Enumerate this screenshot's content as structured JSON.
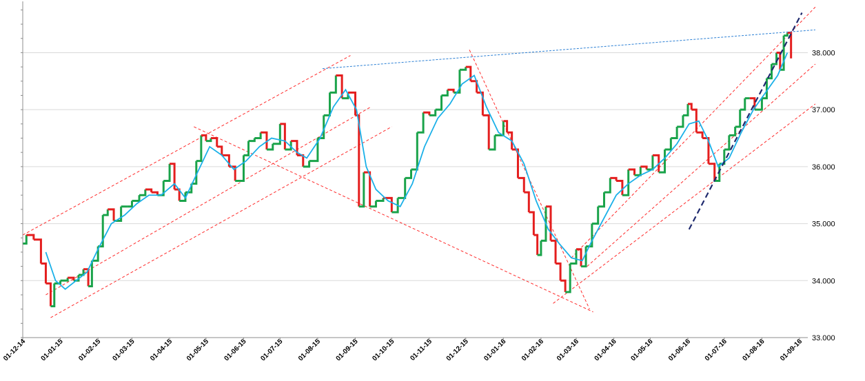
{
  "chart_data": {
    "type": "line",
    "title": "",
    "xlabel": "",
    "ylabel": "",
    "ylim": [
      33.0,
      38.9
    ],
    "grid": true,
    "legend": "none",
    "y_ticks": [
      33.0,
      34.0,
      35.0,
      36.0,
      37.0,
      38.0
    ],
    "y_tick_labels": [
      "33.000",
      "34.000",
      "35.000",
      "36.000",
      "37.000",
      "38.000"
    ],
    "x_tick_labels": [
      "01-12-14",
      "01-01-15",
      "01-02-15",
      "01-03-15",
      "01-04-15",
      "01-05-15",
      "01-06-15",
      "01-07-15",
      "01-08-15",
      "01-09-15",
      "01-10-15",
      "01-11-15",
      "01-12-15",
      "01-01-16",
      "01-02-16",
      "01-03-16",
      "01-04-16",
      "01-05-16",
      "01-06-16",
      "01-07-16",
      "01-08-16",
      "01-09-16"
    ],
    "colors": {
      "up": "#1aa34a",
      "down": "#e41e1e",
      "moving_average": "#1ab0e8",
      "channel": "#ff2a2a",
      "resistance": "#2a7fd4",
      "trend": "#1f2a6e",
      "grid": "#d9d9d9"
    },
    "price_path": [
      [
        "2014-12-01",
        34.65
      ],
      [
        "2014-12-04",
        34.8
      ],
      [
        "2014-12-10",
        34.72
      ],
      [
        "2014-12-16",
        34.3
      ],
      [
        "2014-12-20",
        33.95
      ],
      [
        "2014-12-24",
        33.55
      ],
      [
        "2014-12-27",
        33.95
      ],
      [
        "2015-01-01",
        34.0
      ],
      [
        "2015-01-07",
        34.05
      ],
      [
        "2015-01-12",
        34.0
      ],
      [
        "2015-01-16",
        34.1
      ],
      [
        "2015-01-20",
        34.2
      ],
      [
        "2015-01-24",
        33.9
      ],
      [
        "2015-01-27",
        34.35
      ],
      [
        "2015-02-01",
        34.6
      ],
      [
        "2015-02-05",
        35.15
      ],
      [
        "2015-02-09",
        35.25
      ],
      [
        "2015-02-14",
        35.05
      ],
      [
        "2015-02-20",
        35.3
      ],
      [
        "2015-02-25",
        35.3
      ],
      [
        "2015-03-01",
        35.4
      ],
      [
        "2015-03-07",
        35.5
      ],
      [
        "2015-03-12",
        35.6
      ],
      [
        "2015-03-17",
        35.55
      ],
      [
        "2015-03-22",
        35.5
      ],
      [
        "2015-03-27",
        35.75
      ],
      [
        "2015-04-01",
        36.05
      ],
      [
        "2015-04-05",
        35.6
      ],
      [
        "2015-04-09",
        35.4
      ],
      [
        "2015-04-14",
        35.55
      ],
      [
        "2015-04-19",
        35.7
      ],
      [
        "2015-04-23",
        36.1
      ],
      [
        "2015-04-27",
        36.55
      ],
      [
        "2015-05-01",
        36.45
      ],
      [
        "2015-05-05",
        36.5
      ],
      [
        "2015-05-10",
        36.35
      ],
      [
        "2015-05-14",
        36.2
      ],
      [
        "2015-05-20",
        36.0
      ],
      [
        "2015-05-25",
        35.75
      ],
      [
        "2015-06-01",
        36.2
      ],
      [
        "2015-06-05",
        36.45
      ],
      [
        "2015-06-10",
        36.5
      ],
      [
        "2015-06-15",
        36.6
      ],
      [
        "2015-06-20",
        36.3
      ],
      [
        "2015-06-25",
        36.4
      ],
      [
        "2015-07-01",
        36.75
      ],
      [
        "2015-07-05",
        36.3
      ],
      [
        "2015-07-10",
        36.45
      ],
      [
        "2015-07-15",
        36.2
      ],
      [
        "2015-07-20",
        36.0
      ],
      [
        "2015-07-25",
        36.1
      ],
      [
        "2015-08-01",
        36.5
      ],
      [
        "2015-08-06",
        36.9
      ],
      [
        "2015-08-11",
        37.3
      ],
      [
        "2015-08-16",
        37.6
      ],
      [
        "2015-08-21",
        37.2
      ],
      [
        "2015-08-26",
        37.3
      ],
      [
        "2015-09-01",
        36.9
      ],
      [
        "2015-09-04",
        35.3
      ],
      [
        "2015-09-08",
        35.9
      ],
      [
        "2015-09-13",
        35.3
      ],
      [
        "2015-09-18",
        35.4
      ],
      [
        "2015-09-24",
        35.45
      ],
      [
        "2015-10-01",
        35.2
      ],
      [
        "2015-10-06",
        35.45
      ],
      [
        "2015-10-12",
        35.8
      ],
      [
        "2015-10-17",
        35.95
      ],
      [
        "2015-10-22",
        36.6
      ],
      [
        "2015-10-27",
        36.95
      ],
      [
        "2015-11-01",
        36.9
      ],
      [
        "2015-11-06",
        37.0
      ],
      [
        "2015-11-11",
        37.25
      ],
      [
        "2015-11-16",
        37.35
      ],
      [
        "2015-11-21",
        37.3
      ],
      [
        "2015-11-26",
        37.7
      ],
      [
        "2015-12-01",
        37.75
      ],
      [
        "2015-12-05",
        37.5
      ],
      [
        "2015-12-10",
        37.3
      ],
      [
        "2015-12-15",
        36.9
      ],
      [
        "2015-12-20",
        36.3
      ],
      [
        "2015-12-25",
        36.55
      ],
      [
        "2016-01-01",
        36.8
      ],
      [
        "2016-01-04",
        36.6
      ],
      [
        "2016-01-08",
        36.3
      ],
      [
        "2016-01-13",
        35.8
      ],
      [
        "2016-01-18",
        35.55
      ],
      [
        "2016-01-22",
        35.2
      ],
      [
        "2016-01-26",
        34.8
      ],
      [
        "2016-01-29",
        34.45
      ],
      [
        "2016-02-01",
        34.7
      ],
      [
        "2016-02-05",
        35.3
      ],
      [
        "2016-02-09",
        34.7
      ],
      [
        "2016-02-13",
        34.3
      ],
      [
        "2016-02-17",
        34.0
      ],
      [
        "2016-02-21",
        33.8
      ],
      [
        "2016-02-25",
        34.3
      ],
      [
        "2016-03-01",
        34.55
      ],
      [
        "2016-03-05",
        34.25
      ],
      [
        "2016-03-09",
        34.6
      ],
      [
        "2016-03-14",
        35.0
      ],
      [
        "2016-03-19",
        35.3
      ],
      [
        "2016-03-24",
        35.55
      ],
      [
        "2016-03-29",
        35.8
      ],
      [
        "2016-04-03",
        35.75
      ],
      [
        "2016-04-08",
        35.5
      ],
      [
        "2016-04-13",
        35.95
      ],
      [
        "2016-04-18",
        35.85
      ],
      [
        "2016-04-23",
        36.0
      ],
      [
        "2016-04-28",
        35.95
      ],
      [
        "2016-05-03",
        36.2
      ],
      [
        "2016-05-08",
        35.9
      ],
      [
        "2016-05-13",
        36.3
      ],
      [
        "2016-05-18",
        36.5
      ],
      [
        "2016-05-23",
        36.7
      ],
      [
        "2016-05-28",
        36.9
      ],
      [
        "2016-06-01",
        37.1
      ],
      [
        "2016-06-04",
        37.0
      ],
      [
        "2016-06-08",
        36.6
      ],
      [
        "2016-06-13",
        36.5
      ],
      [
        "2016-06-18",
        36.05
      ],
      [
        "2016-06-23",
        35.75
      ],
      [
        "2016-06-27",
        36.05
      ],
      [
        "2016-07-01",
        36.3
      ],
      [
        "2016-07-05",
        36.55
      ],
      [
        "2016-07-10",
        36.7
      ],
      [
        "2016-07-14",
        37.0
      ],
      [
        "2016-07-18",
        37.2
      ],
      [
        "2016-07-22",
        37.2
      ],
      [
        "2016-07-26",
        37.0
      ],
      [
        "2016-08-01",
        37.2
      ],
      [
        "2016-08-05",
        37.55
      ],
      [
        "2016-08-09",
        37.8
      ],
      [
        "2016-08-13",
        38.0
      ],
      [
        "2016-08-16",
        37.7
      ],
      [
        "2016-08-19",
        38.3
      ],
      [
        "2016-08-22",
        38.35
      ],
      [
        "2016-08-25",
        37.9
      ]
    ],
    "moving_average": [
      [
        "2014-12-20",
        34.5
      ],
      [
        "2014-12-28",
        34.0
      ],
      [
        "2015-01-05",
        33.85
      ],
      [
        "2015-01-14",
        34.0
      ],
      [
        "2015-01-23",
        34.15
      ],
      [
        "2015-02-01",
        34.55
      ],
      [
        "2015-02-12",
        35.0
      ],
      [
        "2015-02-23",
        35.15
      ],
      [
        "2015-03-05",
        35.35
      ],
      [
        "2015-03-15",
        35.5
      ],
      [
        "2015-03-25",
        35.5
      ],
      [
        "2015-04-05",
        35.7
      ],
      [
        "2015-04-14",
        35.45
      ],
      [
        "2015-04-24",
        35.9
      ],
      [
        "2015-05-04",
        36.35
      ],
      [
        "2015-05-14",
        36.2
      ],
      [
        "2015-05-24",
        35.95
      ],
      [
        "2015-06-03",
        36.1
      ],
      [
        "2015-06-14",
        36.35
      ],
      [
        "2015-06-24",
        36.5
      ],
      [
        "2015-07-05",
        36.45
      ],
      [
        "2015-07-15",
        36.25
      ],
      [
        "2015-07-23",
        36.15
      ],
      [
        "2015-08-03",
        36.5
      ],
      [
        "2015-08-14",
        37.05
      ],
      [
        "2015-08-24",
        37.35
      ],
      [
        "2015-09-02",
        37.0
      ],
      [
        "2015-09-10",
        36.0
      ],
      [
        "2015-09-18",
        35.6
      ],
      [
        "2015-09-28",
        35.4
      ],
      [
        "2015-10-08",
        35.3
      ],
      [
        "2015-10-18",
        35.7
      ],
      [
        "2015-10-28",
        36.35
      ],
      [
        "2015-11-08",
        36.85
      ],
      [
        "2015-11-18",
        37.1
      ],
      [
        "2015-11-28",
        37.45
      ],
      [
        "2015-12-08",
        37.6
      ],
      [
        "2015-12-18",
        37.05
      ],
      [
        "2015-12-28",
        36.6
      ],
      [
        "2016-01-08",
        36.45
      ],
      [
        "2016-01-18",
        36.05
      ],
      [
        "2016-01-28",
        35.4
      ],
      [
        "2016-02-07",
        34.9
      ],
      [
        "2016-02-16",
        34.65
      ],
      [
        "2016-02-26",
        34.4
      ],
      [
        "2016-03-06",
        34.35
      ],
      [
        "2016-03-14",
        34.7
      ],
      [
        "2016-03-24",
        35.1
      ],
      [
        "2016-04-03",
        35.5
      ],
      [
        "2016-04-13",
        35.7
      ],
      [
        "2016-04-23",
        35.85
      ],
      [
        "2016-05-03",
        35.95
      ],
      [
        "2016-05-13",
        36.15
      ],
      [
        "2016-05-23",
        36.4
      ],
      [
        "2016-06-02",
        36.75
      ],
      [
        "2016-06-10",
        36.8
      ],
      [
        "2016-06-18",
        36.45
      ],
      [
        "2016-06-26",
        36.0
      ],
      [
        "2016-07-05",
        36.15
      ],
      [
        "2016-07-15",
        36.6
      ],
      [
        "2016-07-25",
        37.0
      ],
      [
        "2016-08-04",
        37.3
      ],
      [
        "2016-08-14",
        37.6
      ],
      [
        "2016-08-22",
        38.0
      ]
    ],
    "channels": [
      [
        [
          "2014-12-01",
          34.8
        ],
        [
          "2015-08-28",
          37.95
        ]
      ],
      [
        [
          "2014-12-20",
          33.75
        ],
        [
          "2015-09-14",
          37.05
        ]
      ],
      [
        [
          "2014-12-24",
          33.35
        ],
        [
          "2015-10-01",
          36.7
        ]
      ],
      [
        [
          "2015-04-21",
          36.7
        ],
        [
          "2016-03-15",
          33.45
        ]
      ],
      [
        [
          "2015-12-04",
          38.05
        ],
        [
          "2016-03-12",
          33.5
        ]
      ],
      [
        [
          "2016-02-26",
          34.4
        ],
        [
          "2016-09-14",
          38.8
        ]
      ],
      [
        [
          "2016-03-10",
          34.25
        ],
        [
          "2016-09-14",
          37.8
        ]
      ],
      [
        [
          "2016-02-11",
          33.6
        ],
        [
          "2016-09-14",
          37.1
        ]
      ]
    ],
    "resistance": [
      [
        "2015-08-05",
        37.72
      ],
      [
        "2016-09-14",
        38.4
      ]
    ],
    "trendline": [
      [
        "2016-06-02",
        34.9
      ],
      [
        "2016-09-03",
        38.7
      ]
    ]
  }
}
